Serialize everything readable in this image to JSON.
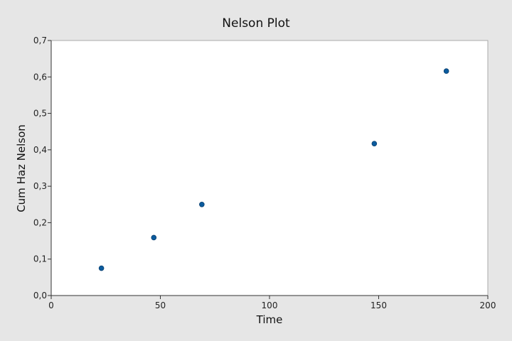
{
  "chart_data": {
    "type": "scatter",
    "title": "Nelson Plot",
    "xlabel": "Time",
    "ylabel": "Cum Haz Nelson",
    "xlim": [
      0,
      200
    ],
    "ylim": [
      0,
      0.7
    ],
    "x_ticks": [
      0,
      50,
      100,
      150,
      200
    ],
    "x_tick_labels": [
      "0",
      "50",
      "100",
      "150",
      "200"
    ],
    "y_ticks": [
      0,
      0.1,
      0.2,
      0.3,
      0.4,
      0.5,
      0.6,
      0.7
    ],
    "y_tick_labels": [
      "0,0",
      "0,1",
      "0,2",
      "0,3",
      "0,4",
      "0,5",
      "0,6",
      "0,7"
    ],
    "grid": false,
    "series": [
      {
        "points": [
          {
            "x": 23,
            "y": 0.075
          },
          {
            "x": 47,
            "y": 0.159
          },
          {
            "x": 69,
            "y": 0.25
          },
          {
            "x": 148,
            "y": 0.417
          },
          {
            "x": 181,
            "y": 0.616
          }
        ]
      }
    ],
    "colors": {
      "background": "#e6e6e6",
      "plot_background": "#ffffff",
      "point_fill": "#0b5b9e",
      "point_stroke": "#0a3f6e",
      "axis": "#333333"
    }
  }
}
